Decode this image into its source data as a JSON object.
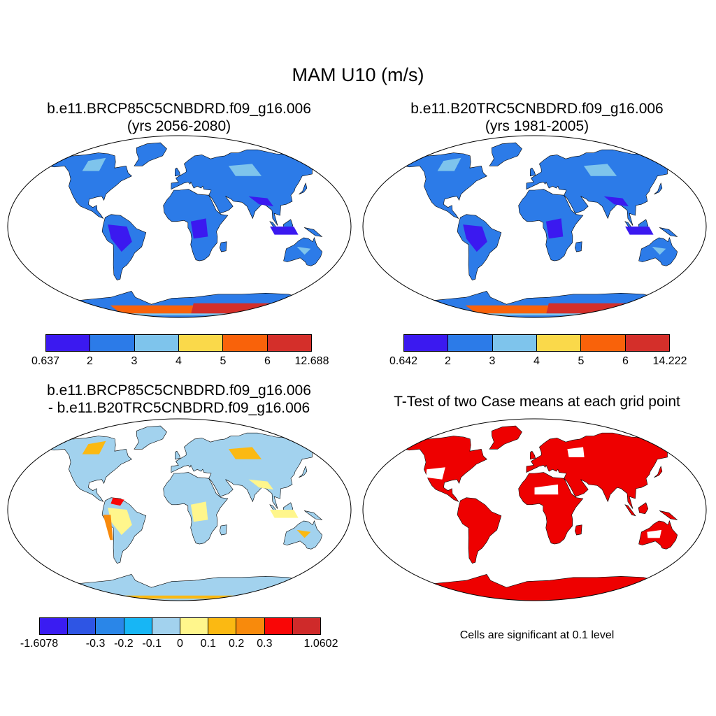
{
  "title": "MAM U10 (m/s)",
  "panels": {
    "p1": {
      "title_line1": "b.e11.BRCP85C5CNBDRD.f09_g16.006",
      "title_line2": "(yrs 2056-2080)"
    },
    "p2": {
      "title_line1": "b.e11.B20TRC5CNBDRD.f09_g16.006",
      "title_line2": "(yrs 1981-2005)"
    },
    "p3": {
      "title_line1": "b.e11.BRCP85C5CNBDRD.f09_g16.006",
      "title_line2": "- b.e11.B20TRC5CNBDRD.f09_g16.006"
    },
    "p4": {
      "title_line1": "T-Test of two Case means at each grid point",
      "note": "Cells are significant at 0.1 level"
    }
  },
  "colorbars": {
    "cb1": {
      "colors": [
        "#3b19f0",
        "#2c7be8",
        "#7ec4ec",
        "#fad94a",
        "#f9620a",
        "#d42f2a"
      ],
      "labels": [
        "0.637",
        "2",
        "3",
        "4",
        "5",
        "6",
        "12.688"
      ]
    },
    "cb2": {
      "colors": [
        "#3b19f0",
        "#2c7be8",
        "#7ec4ec",
        "#fad94a",
        "#f9620a",
        "#d42f2a"
      ],
      "labels": [
        "0.642",
        "2",
        "3",
        "4",
        "5",
        "6",
        "14.222"
      ]
    },
    "cb3": {
      "colors": [
        "#3a1cf2",
        "#2e55e4",
        "#2a86e8",
        "#17b6f5",
        "#a2d2ee",
        "#fff68c",
        "#fbb912",
        "#f88a0c",
        "#f90606",
        "#cf2a2a"
      ],
      "labels": [
        "-1.6078",
        "",
        "-0.3",
        "-0.2",
        "-0.1",
        "0",
        "0.1",
        "0.2",
        "0.3",
        "",
        "1.0602"
      ]
    }
  },
  "map_colors": {
    "ocean": "#ffffff",
    "outline": "#000000",
    "significant": "#ee0000"
  }
}
